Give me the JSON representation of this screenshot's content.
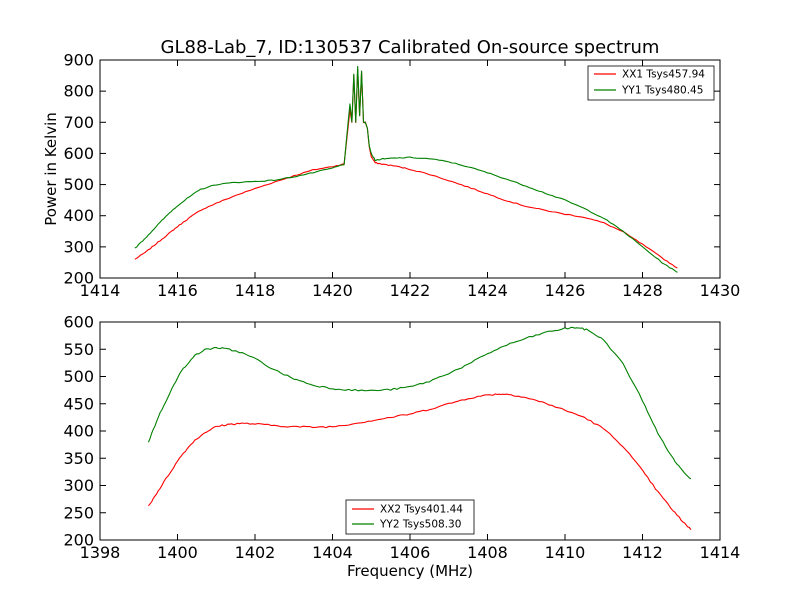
{
  "figure_title": "GL88-Lab_7, ID:130537 Calibrated On-source spectrum",
  "chart_data": [
    {
      "type": "line",
      "title": "GL88-Lab_7, ID:130537 Calibrated On-source spectrum",
      "xlabel": "",
      "ylabel": "Power in Kelvin",
      "xlim": [
        1414,
        1430
      ],
      "ylim": [
        200,
        900
      ],
      "xticks": [
        1414,
        1416,
        1418,
        1420,
        1422,
        1424,
        1426,
        1428,
        1430
      ],
      "yticks": [
        200,
        300,
        400,
        500,
        600,
        700,
        800,
        900
      ],
      "grid": false,
      "legend_position": "top-right",
      "series": [
        {
          "name": "XX1 Tsys457.94",
          "color": "#ff0000",
          "x": [
            1414.9,
            1415.2,
            1415.5,
            1415.8,
            1416.0,
            1416.3,
            1416.6,
            1417.0,
            1417.5,
            1418.0,
            1418.5,
            1419.0,
            1419.5,
            1420.0,
            1420.3,
            1420.45,
            1420.5,
            1420.55,
            1420.6,
            1420.65,
            1420.7,
            1420.75,
            1420.8,
            1420.85,
            1420.9,
            1420.95,
            1421.0,
            1421.1,
            1421.3,
            1421.6,
            1422.0,
            1422.5,
            1423.0,
            1423.5,
            1424.0,
            1424.5,
            1425.0,
            1425.5,
            1426.0,
            1426.5,
            1427.0,
            1427.5,
            1428.0,
            1428.5,
            1428.9
          ],
          "y": [
            260,
            285,
            315,
            345,
            365,
            393,
            418,
            440,
            465,
            487,
            508,
            528,
            547,
            558,
            566,
            740,
            700,
            850,
            700,
            870,
            720,
            860,
            700,
            700,
            680,
            620,
            590,
            570,
            565,
            560,
            549,
            533,
            513,
            492,
            470,
            448,
            430,
            417,
            405,
            395,
            377,
            348,
            308,
            265,
            232
          ]
        },
        {
          "name": "YY1 Tsys480.45",
          "color": "#008000",
          "x": [
            1414.9,
            1415.2,
            1415.5,
            1415.8,
            1416.0,
            1416.3,
            1416.6,
            1417.0,
            1417.5,
            1418.0,
            1418.5,
            1419.0,
            1419.5,
            1420.0,
            1420.3,
            1420.45,
            1420.5,
            1420.55,
            1420.6,
            1420.65,
            1420.7,
            1420.75,
            1420.8,
            1420.85,
            1420.9,
            1420.95,
            1421.0,
            1421.1,
            1421.3,
            1421.6,
            1422.0,
            1422.5,
            1423.0,
            1423.5,
            1424.0,
            1424.5,
            1425.0,
            1425.5,
            1426.0,
            1426.5,
            1427.0,
            1427.5,
            1428.0,
            1428.5,
            1428.9
          ],
          "y": [
            295,
            332,
            372,
            410,
            432,
            460,
            485,
            500,
            507,
            510,
            514,
            525,
            538,
            553,
            565,
            760,
            700,
            855,
            700,
            880,
            720,
            865,
            700,
            700,
            680,
            625,
            600,
            578,
            582,
            585,
            587,
            583,
            573,
            557,
            538,
            517,
            495,
            472,
            450,
            423,
            392,
            350,
            300,
            250,
            218
          ]
        }
      ]
    },
    {
      "type": "line",
      "title": "",
      "xlabel": "Frequency (MHz)",
      "ylabel": "",
      "xlim": [
        1398,
        1414
      ],
      "ylim": [
        200,
        600
      ],
      "xticks": [
        1398,
        1400,
        1402,
        1404,
        1406,
        1408,
        1410,
        1412,
        1414
      ],
      "yticks": [
        200,
        250,
        300,
        350,
        400,
        450,
        500,
        550,
        600
      ],
      "grid": false,
      "legend_position": "bottom-center",
      "series": [
        {
          "name": "XX2 Tsys401.44",
          "color": "#ff0000",
          "x": [
            1399.25,
            1399.5,
            1399.8,
            1400.1,
            1400.4,
            1400.7,
            1401.0,
            1401.3,
            1401.6,
            1402.0,
            1402.5,
            1403.0,
            1403.5,
            1404.0,
            1404.5,
            1405.0,
            1405.5,
            1406.0,
            1406.5,
            1407.0,
            1407.5,
            1408.0,
            1408.3,
            1408.6,
            1409.0,
            1409.5,
            1410.0,
            1410.5,
            1411.0,
            1411.5,
            1412.0,
            1412.4,
            1412.8,
            1413.0,
            1413.25
          ],
          "y": [
            262,
            290,
            323,
            355,
            380,
            397,
            408,
            412,
            414,
            413,
            410,
            408,
            407,
            408,
            413,
            419,
            425,
            431,
            440,
            450,
            460,
            466,
            468,
            467,
            461,
            451,
            438,
            425,
            404,
            372,
            327,
            288,
            253,
            237,
            219
          ]
        },
        {
          "name": "YY2 Tsys508.30",
          "color": "#008000",
          "x": [
            1399.25,
            1399.5,
            1399.8,
            1400.1,
            1400.4,
            1400.7,
            1401.0,
            1401.3,
            1401.6,
            1402.0,
            1402.5,
            1403.0,
            1403.5,
            1404.0,
            1404.5,
            1405.0,
            1405.5,
            1406.0,
            1406.5,
            1407.0,
            1407.5,
            1408.0,
            1408.5,
            1409.0,
            1409.5,
            1410.0,
            1410.3,
            1410.6,
            1411.0,
            1411.5,
            1412.0,
            1412.4,
            1412.8,
            1413.0,
            1413.25
          ],
          "y": [
            380,
            425,
            470,
            510,
            536,
            549,
            553,
            550,
            545,
            533,
            512,
            496,
            484,
            478,
            475,
            474,
            476,
            481,
            491,
            506,
            522,
            542,
            558,
            570,
            581,
            588,
            590,
            585,
            567,
            523,
            456,
            395,
            348,
            330,
            312
          ]
        }
      ]
    }
  ]
}
